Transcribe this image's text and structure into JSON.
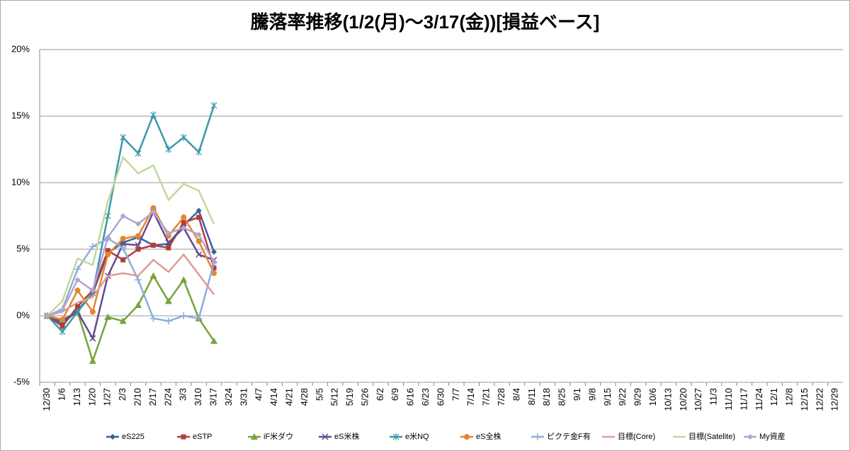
{
  "chart_data": {
    "type": "line",
    "title": "騰落率推移(1/2(月)～3/17(金))[損益ベース]",
    "categories": [
      "12/30",
      "1/6",
      "1/13",
      "1/20",
      "1/27",
      "2/3",
      "2/10",
      "2/17",
      "2/24",
      "3/3",
      "3/10",
      "3/17",
      "3/24",
      "3/31",
      "4/7",
      "4/14",
      "4/21",
      "4/28",
      "5/5",
      "5/12",
      "5/19",
      "5/26",
      "6/2",
      "6/9",
      "6/16",
      "6/23",
      "6/30",
      "7/7",
      "7/14",
      "7/21",
      "7/28",
      "8/4",
      "8/11",
      "8/18",
      "8/25",
      "9/1",
      "9/8",
      "9/15",
      "9/22",
      "9/29",
      "10/6",
      "10/13",
      "10/20",
      "10/27",
      "11/3",
      "11/10",
      "11/17",
      "11/24",
      "12/1",
      "12/8",
      "12/15",
      "12/22",
      "12/29"
    ],
    "ylim": [
      -5,
      20
    ],
    "yticks": [
      {
        "value": -5,
        "label": "-5%"
      },
      {
        "value": 0,
        "label": "0%"
      },
      {
        "value": 5,
        "label": "5%"
      },
      {
        "value": 10,
        "label": "10%"
      },
      {
        "value": 15,
        "label": "15%"
      },
      {
        "value": 20,
        "label": "20%"
      }
    ],
    "grid": true,
    "legend": "bottom",
    "series": [
      {
        "name": "eS225",
        "color": "#3a5f9e",
        "marker": "diamond",
        "values": [
          0,
          -0.6,
          0.4,
          1.7,
          4.7,
          5.5,
          5.9,
          5.3,
          5.4,
          6.8,
          7.9,
          4.8,
          null,
          null,
          null,
          null,
          null,
          null,
          null,
          null,
          null,
          null,
          null,
          null,
          null,
          null,
          null,
          null,
          null,
          null,
          null,
          null,
          null,
          null,
          null,
          null,
          null,
          null,
          null,
          null,
          null,
          null,
          null,
          null,
          null,
          null,
          null,
          null,
          null,
          null,
          null,
          null,
          null
        ]
      },
      {
        "name": "eSTP",
        "color": "#b23c3a",
        "marker": "square",
        "values": [
          0,
          -0.8,
          0.7,
          1.9,
          4.9,
          4.2,
          5.0,
          5.3,
          5.1,
          7.0,
          7.4,
          3.6,
          null,
          null,
          null,
          null,
          null,
          null,
          null,
          null,
          null,
          null,
          null,
          null,
          null,
          null,
          null,
          null,
          null,
          null,
          null,
          null,
          null,
          null,
          null,
          null,
          null,
          null,
          null,
          null,
          null,
          null,
          null,
          null,
          null,
          null,
          null,
          null,
          null,
          null,
          null,
          null,
          null
        ]
      },
      {
        "name": "iF米ダウ",
        "color": "#77a33c",
        "marker": "triangle",
        "values": [
          0,
          -0.3,
          0.3,
          -3.4,
          -0.1,
          -0.4,
          0.8,
          3.0,
          1.1,
          2.7,
          -0.2,
          -1.9,
          null,
          null,
          null,
          null,
          null,
          null,
          null,
          null,
          null,
          null,
          null,
          null,
          null,
          null,
          null,
          null,
          null,
          null,
          null,
          null,
          null,
          null,
          null,
          null,
          null,
          null,
          null,
          null,
          null,
          null,
          null,
          null,
          null,
          null,
          null,
          null,
          null,
          null,
          null,
          null,
          null
        ]
      },
      {
        "name": "eS米株",
        "color": "#654a8e",
        "marker": "x",
        "values": [
          0,
          -0.4,
          0.3,
          -1.7,
          3.0,
          5.4,
          5.3,
          7.8,
          5.5,
          6.6,
          4.6,
          4.2,
          null,
          null,
          null,
          null,
          null,
          null,
          null,
          null,
          null,
          null,
          null,
          null,
          null,
          null,
          null,
          null,
          null,
          null,
          null,
          null,
          null,
          null,
          null,
          null,
          null,
          null,
          null,
          null,
          null,
          null,
          null,
          null,
          null,
          null,
          null,
          null,
          null,
          null,
          null,
          null,
          null
        ]
      },
      {
        "name": "e米NQ",
        "color": "#3b98ad",
        "marker": "star",
        "values": [
          0,
          -1.2,
          0.3,
          1.7,
          7.5,
          13.4,
          12.2,
          15.1,
          12.5,
          13.4,
          12.3,
          15.8,
          null,
          null,
          null,
          null,
          null,
          null,
          null,
          null,
          null,
          null,
          null,
          null,
          null,
          null,
          null,
          null,
          null,
          null,
          null,
          null,
          null,
          null,
          null,
          null,
          null,
          null,
          null,
          null,
          null,
          null,
          null,
          null,
          null,
          null,
          null,
          null,
          null,
          null,
          null,
          null,
          null
        ]
      },
      {
        "name": "eS全株",
        "color": "#e5852e",
        "marker": "circle",
        "values": [
          0,
          -0.3,
          1.9,
          0.3,
          4.6,
          5.8,
          6.0,
          8.1,
          6.0,
          7.4,
          5.6,
          3.2,
          null,
          null,
          null,
          null,
          null,
          null,
          null,
          null,
          null,
          null,
          null,
          null,
          null,
          null,
          null,
          null,
          null,
          null,
          null,
          null,
          null,
          null,
          null,
          null,
          null,
          null,
          null,
          null,
          null,
          null,
          null,
          null,
          null,
          null,
          null,
          null,
          null,
          null,
          null,
          null,
          null
        ]
      },
      {
        "name": "ピクテ金F有",
        "color": "#8eaedb",
        "marker": "plus",
        "values": [
          0,
          0.5,
          3.5,
          5.2,
          5.8,
          5.1,
          2.7,
          -0.2,
          -0.4,
          0.0,
          -0.2,
          4.0,
          null,
          null,
          null,
          null,
          null,
          null,
          null,
          null,
          null,
          null,
          null,
          null,
          null,
          null,
          null,
          null,
          null,
          null,
          null,
          null,
          null,
          null,
          null,
          null,
          null,
          null,
          null,
          null,
          null,
          null,
          null,
          null,
          null,
          null,
          null,
          null,
          null,
          null,
          null,
          null,
          null
        ]
      },
      {
        "name": "目標(Core)",
        "color": "#dc9c9a",
        "marker": "none",
        "values": [
          0,
          0.3,
          1.0,
          1.4,
          3.0,
          3.2,
          3.0,
          4.2,
          3.3,
          4.6,
          3.1,
          1.6,
          null,
          null,
          null,
          null,
          null,
          null,
          null,
          null,
          null,
          null,
          null,
          null,
          null,
          null,
          null,
          null,
          null,
          null,
          null,
          null,
          null,
          null,
          null,
          null,
          null,
          null,
          null,
          null,
          null,
          null,
          null,
          null,
          null,
          null,
          null,
          null,
          null,
          null,
          null,
          null,
          null
        ]
      },
      {
        "name": "目標(Satelite)",
        "color": "#c0d89c",
        "marker": "none",
        "values": [
          0,
          1.1,
          4.3,
          3.8,
          8.6,
          11.9,
          10.7,
          11.3,
          8.7,
          9.9,
          9.4,
          6.9,
          null,
          null,
          null,
          null,
          null,
          null,
          null,
          null,
          null,
          null,
          null,
          null,
          null,
          null,
          null,
          null,
          null,
          null,
          null,
          null,
          null,
          null,
          null,
          null,
          null,
          null,
          null,
          null,
          null,
          null,
          null,
          null,
          null,
          null,
          null,
          null,
          null,
          null,
          null,
          null,
          null
        ]
      },
      {
        "name": "My資産",
        "color": "#b4a4d0",
        "marker": "diamond",
        "values": [
          0,
          0.4,
          2.7,
          1.9,
          5.9,
          7.5,
          6.9,
          7.8,
          6.2,
          6.6,
          6.1,
          4.0,
          null,
          null,
          null,
          null,
          null,
          null,
          null,
          null,
          null,
          null,
          null,
          null,
          null,
          null,
          null,
          null,
          null,
          null,
          null,
          null,
          null,
          null,
          null,
          null,
          null,
          null,
          null,
          null,
          null,
          null,
          null,
          null,
          null,
          null,
          null,
          null,
          null,
          null,
          null,
          null,
          null
        ]
      }
    ]
  }
}
